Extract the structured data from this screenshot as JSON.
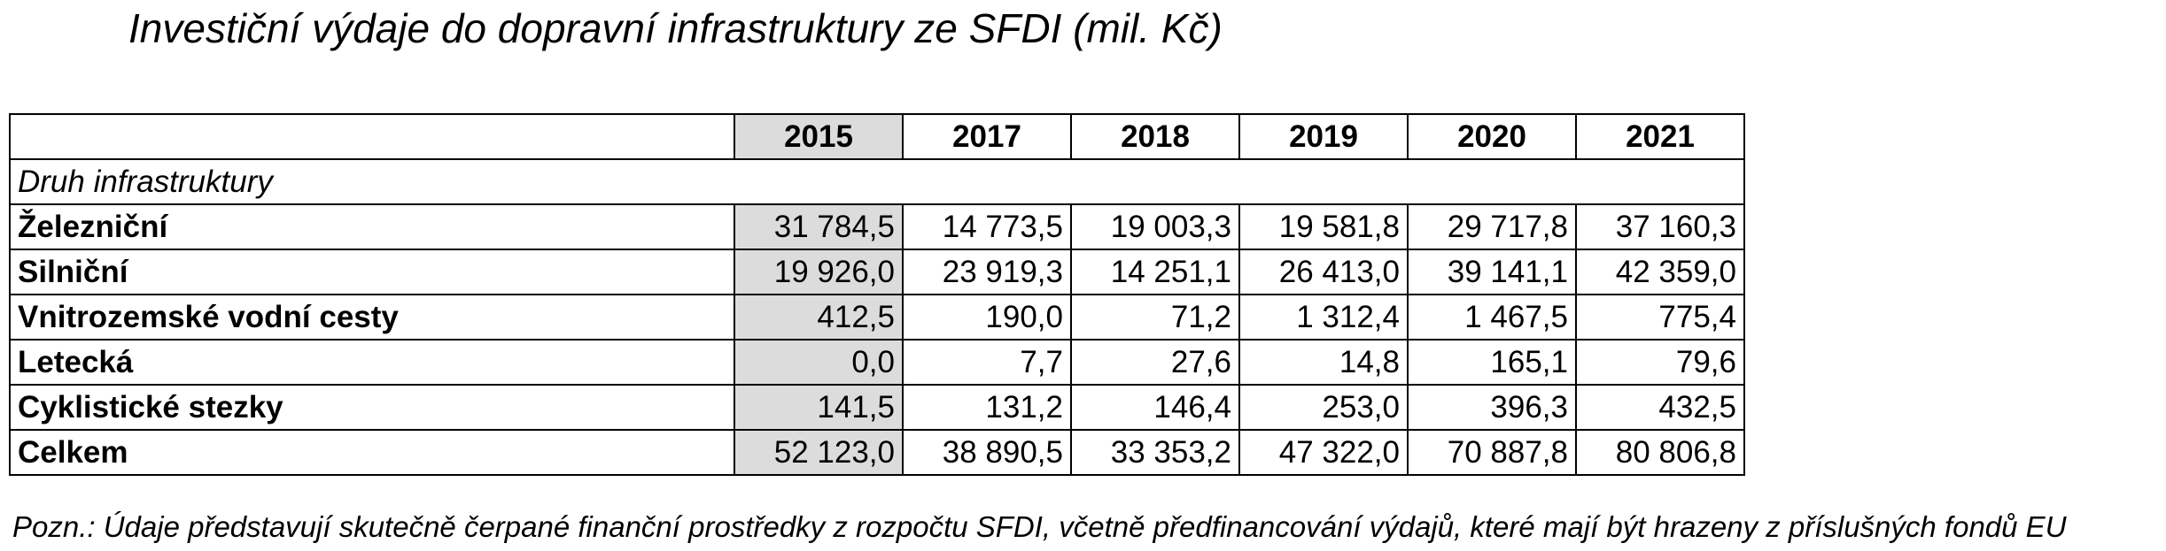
{
  "title": "Investiční výdaje do dopravní infrastruktury ze SFDI (mil. Kč)",
  "table": {
    "years": [
      "2015",
      "2017",
      "2018",
      "2019",
      "2020",
      "2021"
    ],
    "subheader": "Druh infrastruktury",
    "rows": [
      {
        "label": "Železniční",
        "values": [
          "31 784,5",
          "14 773,5",
          "19 003,3",
          "19 581,8",
          "29 717,8",
          "37 160,3"
        ]
      },
      {
        "label": "Silniční",
        "values": [
          "19 926,0",
          "23 919,3",
          "14 251,1",
          "26 413,0",
          "39 141,1",
          "42 359,0"
        ]
      },
      {
        "label": "Vnitrozemské vodní cesty",
        "values": [
          "412,5",
          "190,0",
          "71,2",
          "1 312,4",
          "1 467,5",
          "775,4"
        ]
      },
      {
        "label": "Letecká",
        "values": [
          "0,0",
          "7,7",
          "27,6",
          "14,8",
          "165,1",
          "79,6"
        ]
      },
      {
        "label": "Cyklistické stezky",
        "values": [
          "141,5",
          "131,2",
          "146,4",
          "253,0",
          "396,3",
          "432,5"
        ]
      },
      {
        "label": "Celkem",
        "values": [
          "52 123,0",
          "38 890,5",
          "33 353,2",
          "47 322,0",
          "70 887,8",
          "80 806,8"
        ]
      }
    ]
  },
  "note": "Pozn.: Údaje  představují skutečně čerpané finanční prostředky z rozpočtu SFDI, včetně předfinancování výdajů, které mají být hrazeny z příslušných fondů EU",
  "colors": {
    "highlight_column": "#dcdcdc",
    "border": "#000000",
    "text": "#000000"
  }
}
